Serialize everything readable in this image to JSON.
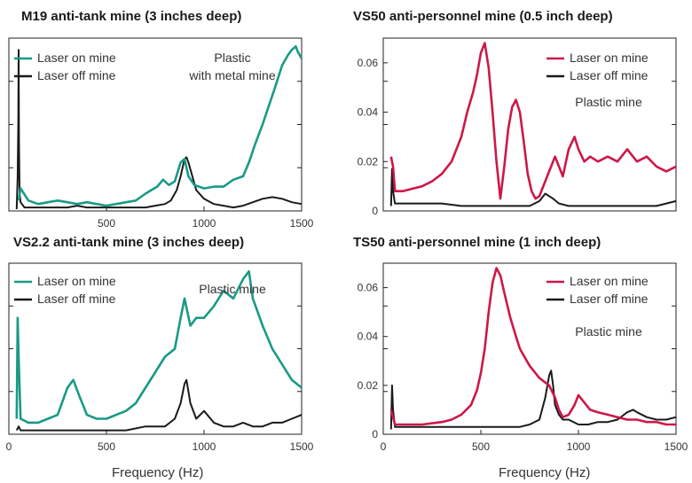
{
  "figure": {
    "xlabel": "Frequency (Hz)"
  },
  "colors": {
    "laser_on_left": "#1a9a86",
    "laser_on_right": "#cc1848",
    "laser_off": "#1a1a1a"
  },
  "chart_data": [
    {
      "type": "line",
      "title": "M19 anti-tank mine (3 inches deep)",
      "annotation": [
        "Plastic",
        "with metal mine"
      ],
      "xlim": [
        0,
        1500
      ],
      "xticks": [
        500,
        1000,
        1500
      ],
      "yticks": [],
      "series": [
        {
          "name": "Laser on mine",
          "color": "#1a9a86",
          "x": [
            50,
            60,
            100,
            150,
            200,
            250,
            300,
            350,
            400,
            450,
            500,
            550,
            600,
            650,
            700,
            730,
            760,
            790,
            820,
            850,
            880,
            900,
            920,
            950,
            1000,
            1050,
            1100,
            1150,
            1200,
            1230,
            1260,
            1300,
            1330,
            1360,
            1400,
            1430,
            1450,
            1470,
            1480,
            1490,
            1500
          ],
          "y": [
            0.06,
            0.13,
            0.06,
            0.04,
            0.05,
            0.06,
            0.05,
            0.04,
            0.05,
            0.04,
            0.03,
            0.04,
            0.05,
            0.06,
            0.1,
            0.12,
            0.14,
            0.18,
            0.15,
            0.17,
            0.28,
            0.3,
            0.2,
            0.15,
            0.13,
            0.14,
            0.14,
            0.18,
            0.2,
            0.28,
            0.38,
            0.5,
            0.6,
            0.7,
            0.84,
            0.9,
            0.93,
            0.95,
            0.92,
            0.9,
            0.88
          ]
        },
        {
          "name": "Laser off mine",
          "color": "#1a1a1a",
          "x": [
            40,
            45,
            48,
            50,
            52,
            55,
            60,
            80,
            100,
            150,
            200,
            250,
            300,
            350,
            400,
            450,
            500,
            550,
            600,
            650,
            700,
            750,
            800,
            830,
            860,
            880,
            900,
            910,
            920,
            940,
            960,
            1000,
            1050,
            1100,
            1150,
            1200,
            1250,
            1300,
            1350,
            1400,
            1450,
            1500
          ],
          "y": [
            0.01,
            0.2,
            0.5,
            0.93,
            0.4,
            0.1,
            0.05,
            0.02,
            0.02,
            0.02,
            0.02,
            0.02,
            0.02,
            0.03,
            0.02,
            0.02,
            0.02,
            0.02,
            0.02,
            0.02,
            0.02,
            0.03,
            0.04,
            0.06,
            0.12,
            0.2,
            0.3,
            0.31,
            0.28,
            0.2,
            0.12,
            0.07,
            0.04,
            0.03,
            0.02,
            0.03,
            0.05,
            0.07,
            0.08,
            0.07,
            0.05,
            0.04
          ]
        }
      ]
    },
    {
      "type": "line",
      "title": "VS50 anti-personnel mine (0.5 inch deep)",
      "annotation": [
        "Plastic mine"
      ],
      "xlim": [
        0,
        1500
      ],
      "ylim": [
        0,
        0.07
      ],
      "xticks": [],
      "yticks": [
        0,
        0.02,
        0.04,
        0.06
      ],
      "series": [
        {
          "name": "Laser on mine",
          "color": "#cc1848",
          "x": [
            40,
            50,
            60,
            100,
            150,
            200,
            250,
            300,
            350,
            400,
            430,
            460,
            480,
            500,
            520,
            540,
            560,
            580,
            600,
            620,
            640,
            660,
            680,
            700,
            720,
            740,
            760,
            780,
            800,
            820,
            850,
            880,
            900,
            920,
            950,
            980,
            1000,
            1030,
            1060,
            1100,
            1150,
            1200,
            1250,
            1300,
            1350,
            1400,
            1450,
            1500
          ],
          "y": [
            0.022,
            0.018,
            0.008,
            0.008,
            0.009,
            0.01,
            0.012,
            0.015,
            0.02,
            0.03,
            0.04,
            0.048,
            0.055,
            0.064,
            0.068,
            0.058,
            0.04,
            0.02,
            0.005,
            0.018,
            0.033,
            0.042,
            0.045,
            0.04,
            0.028,
            0.015,
            0.008,
            0.005,
            0.006,
            0.01,
            0.016,
            0.022,
            0.018,
            0.014,
            0.025,
            0.03,
            0.025,
            0.02,
            0.022,
            0.02,
            0.022,
            0.02,
            0.025,
            0.02,
            0.022,
            0.018,
            0.016,
            0.018
          ]
        },
        {
          "name": "Laser off mine",
          "color": "#1a1a1a",
          "x": [
            40,
            45,
            50,
            60,
            100,
            200,
            300,
            400,
            500,
            600,
            700,
            750,
            800,
            830,
            850,
            870,
            900,
            950,
            1000,
            1100,
            1200,
            1300,
            1400,
            1450,
            1500
          ],
          "y": [
            0.002,
            0.017,
            0.008,
            0.003,
            0.003,
            0.003,
            0.003,
            0.002,
            0.002,
            0.002,
            0.002,
            0.002,
            0.004,
            0.007,
            0.006,
            0.005,
            0.003,
            0.002,
            0.002,
            0.002,
            0.002,
            0.002,
            0.002,
            0.003,
            0.004
          ]
        }
      ]
    },
    {
      "type": "line",
      "title": "VS2.2 anti-tank mine (3 inches deep)",
      "annotation": [
        "Plastic mine"
      ],
      "xlim": [
        0,
        1500
      ],
      "xticks": [
        0,
        500,
        1000,
        1500
      ],
      "yticks": [],
      "series": [
        {
          "name": "Laser on mine",
          "color": "#1a9a86",
          "x": [
            40,
            45,
            50,
            60,
            100,
            150,
            200,
            250,
            300,
            330,
            360,
            400,
            450,
            500,
            550,
            600,
            650,
            700,
            750,
            800,
            850,
            880,
            900,
            930,
            960,
            1000,
            1050,
            1100,
            1150,
            1200,
            1230,
            1250,
            1300,
            1350,
            1400,
            1450,
            1500
          ],
          "y": [
            0.04,
            0.3,
            0.2,
            0.04,
            0.03,
            0.03,
            0.04,
            0.05,
            0.12,
            0.14,
            0.1,
            0.05,
            0.04,
            0.04,
            0.05,
            0.06,
            0.08,
            0.12,
            0.16,
            0.2,
            0.22,
            0.3,
            0.35,
            0.28,
            0.3,
            0.3,
            0.33,
            0.37,
            0.35,
            0.4,
            0.42,
            0.35,
            0.28,
            0.22,
            0.18,
            0.14,
            0.12
          ]
        },
        {
          "name": "Laser off mine",
          "color": "#1a1a1a",
          "x": [
            40,
            50,
            60,
            100,
            200,
            300,
            400,
            500,
            600,
            700,
            750,
            800,
            850,
            880,
            900,
            910,
            930,
            960,
            1000,
            1050,
            1100,
            1150,
            1200,
            1250,
            1300,
            1350,
            1400,
            1450,
            1500
          ],
          "y": [
            0.01,
            0.02,
            0.01,
            0.01,
            0.01,
            0.01,
            0.01,
            0.01,
            0.01,
            0.02,
            0.02,
            0.02,
            0.04,
            0.08,
            0.13,
            0.14,
            0.08,
            0.04,
            0.06,
            0.03,
            0.02,
            0.02,
            0.03,
            0.02,
            0.02,
            0.03,
            0.03,
            0.04,
            0.05
          ]
        }
      ]
    },
    {
      "type": "line",
      "title": "TS50 anti-personnel mine (1 inch deep)",
      "annotation": [
        "Plastic mine"
      ],
      "xlim": [
        0,
        1500
      ],
      "ylim": [
        0,
        0.07
      ],
      "xticks": [
        0,
        500,
        1000,
        1500
      ],
      "yticks": [
        0,
        0.02,
        0.04,
        0.06
      ],
      "series": [
        {
          "name": "Laser on mine",
          "color": "#cc1848",
          "x": [
            40,
            50,
            60,
            100,
            200,
            300,
            350,
            400,
            450,
            480,
            500,
            520,
            540,
            560,
            580,
            600,
            620,
            650,
            680,
            700,
            750,
            800,
            850,
            880,
            900,
            920,
            950,
            980,
            1000,
            1030,
            1060,
            1100,
            1150,
            1200,
            1250,
            1300,
            1350,
            1400,
            1450,
            1500
          ],
          "y": [
            0.01,
            0.007,
            0.004,
            0.004,
            0.004,
            0.005,
            0.006,
            0.008,
            0.012,
            0.018,
            0.025,
            0.035,
            0.05,
            0.062,
            0.068,
            0.065,
            0.058,
            0.048,
            0.04,
            0.035,
            0.028,
            0.023,
            0.02,
            0.015,
            0.01,
            0.007,
            0.008,
            0.012,
            0.016,
            0.013,
            0.01,
            0.009,
            0.008,
            0.007,
            0.006,
            0.006,
            0.005,
            0.005,
            0.004,
            0.004
          ]
        },
        {
          "name": "Laser off mine",
          "color": "#1a1a1a",
          "x": [
            40,
            45,
            50,
            60,
            100,
            200,
            300,
            400,
            500,
            600,
            700,
            750,
            800,
            830,
            850,
            860,
            870,
            880,
            900,
            920,
            950,
            1000,
            1050,
            1100,
            1150,
            1200,
            1250,
            1280,
            1300,
            1350,
            1400,
            1450,
            1500
          ],
          "y": [
            0.002,
            0.02,
            0.01,
            0.003,
            0.003,
            0.003,
            0.003,
            0.003,
            0.003,
            0.003,
            0.003,
            0.004,
            0.006,
            0.015,
            0.024,
            0.026,
            0.02,
            0.012,
            0.008,
            0.006,
            0.006,
            0.004,
            0.004,
            0.005,
            0.005,
            0.006,
            0.009,
            0.01,
            0.009,
            0.007,
            0.006,
            0.006,
            0.007
          ]
        }
      ]
    }
  ]
}
